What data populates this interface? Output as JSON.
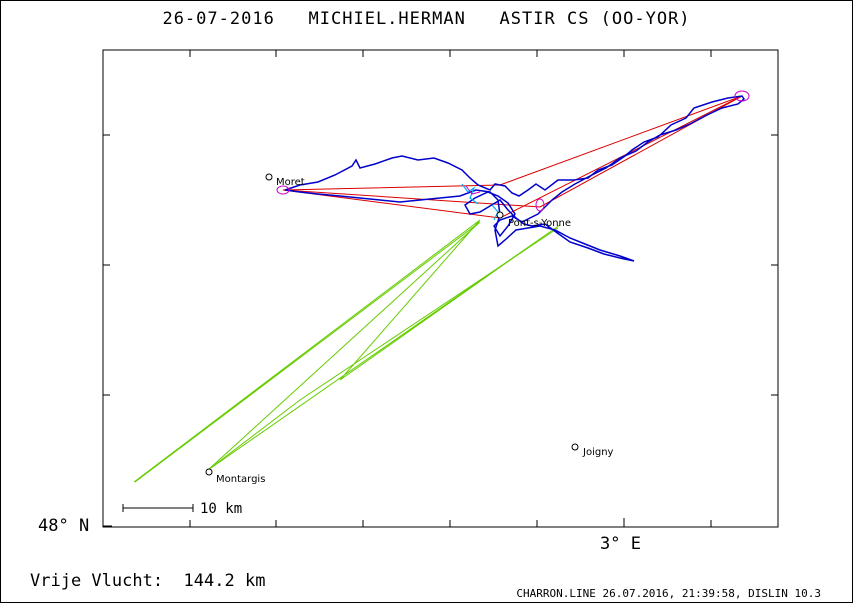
{
  "title": {
    "date": "26-07-2016",
    "pilot": "MICHIEL.HERMAN",
    "glider": "ASTIR CS (OO-YOR)"
  },
  "axes": {
    "lat_label": "48° N",
    "lon_label": "3° E"
  },
  "scale_bar": {
    "label": "10 km"
  },
  "towns": [
    {
      "name": "Moret"
    },
    {
      "name": "Pont-s-Yonne"
    },
    {
      "name": "Joigny"
    },
    {
      "name": "Montargis"
    }
  ],
  "footer": {
    "distance_label": "Vrije Vlucht:",
    "distance_value": "144.2 km",
    "credits": "CHARRON.LINE 26.07.2016, 21:39:58, DISLIN 10.3"
  },
  "colors": {
    "track": "#0000cc",
    "task": "#dd0000",
    "turnpoint": "#cc00cc",
    "ground_track": "#66cc00",
    "climb": "#00aaff"
  }
}
